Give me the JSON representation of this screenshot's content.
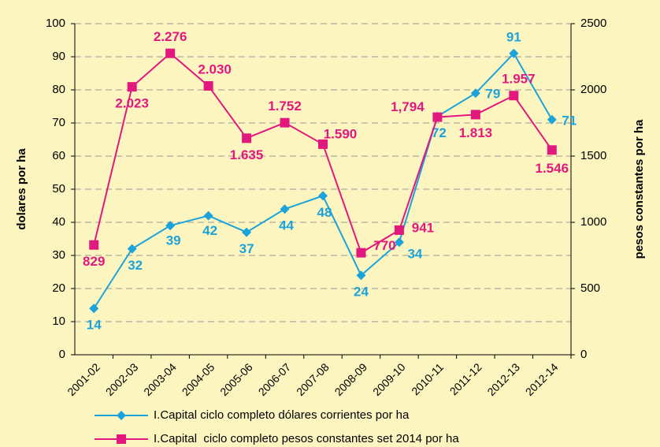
{
  "chart_data": {
    "type": "line",
    "categories": [
      "2001-02",
      "2002-03",
      "2003-04",
      "2004-05",
      "2005-06",
      "2006-07",
      "2007-08",
      "2008-09",
      "2009-10",
      "2010-11",
      "2011-12",
      "2012-13",
      "2012-14"
    ],
    "series": [
      {
        "name": "I.Capital ciclo completo dólares corrientes por ha",
        "color": "#1ca3dc",
        "marker": "diamond",
        "values": [
          14,
          32,
          39,
          42,
          37,
          44,
          48,
          24,
          34,
          72,
          79,
          91,
          71
        ]
      },
      {
        "name": "I.Capital  ciclo completo pesos constantes set 2014 por ha",
        "color": "#e2187f",
        "marker": "square",
        "axis": "y2",
        "values": [
          829,
          2023,
          2276,
          2030,
          1635,
          1752,
          1590,
          770,
          941,
          1794,
          1813,
          1957,
          1546
        ],
        "value_labels": [
          "829",
          "2.023",
          "2.276",
          "2.030",
          "1.635",
          "1.752",
          "1.590",
          "770",
          "941",
          "1,794",
          "1.813",
          "1.957",
          "1.546"
        ]
      }
    ],
    "ylabel": "dolares por ha",
    "y2label": "pesos constantes por ha",
    "ylim": [
      0,
      100
    ],
    "yticks": [
      0,
      10,
      20,
      30,
      40,
      50,
      60,
      70,
      80,
      90,
      100
    ],
    "y2lim": [
      0,
      2500
    ],
    "y2ticks": [
      0,
      500,
      1000,
      1500,
      2000,
      2500
    ],
    "grid": true
  }
}
